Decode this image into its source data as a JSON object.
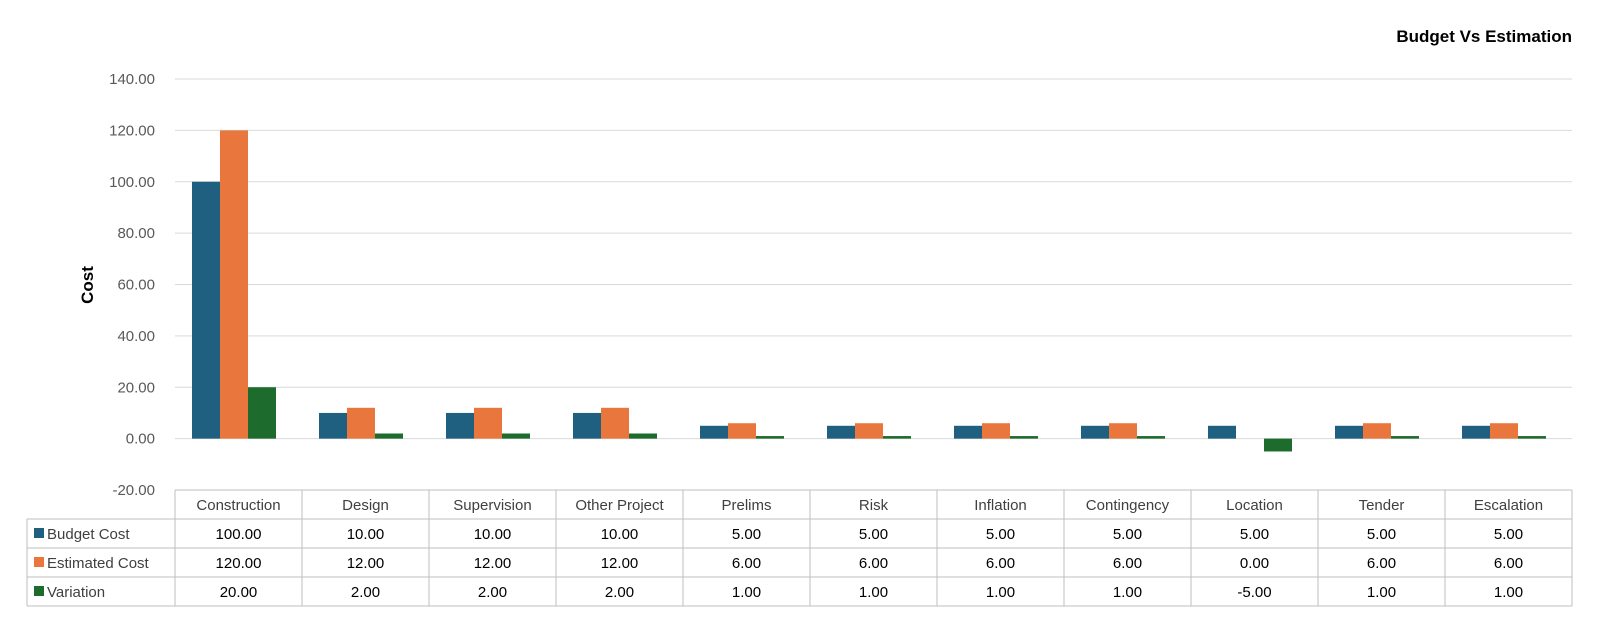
{
  "chart_data": {
    "type": "bar",
    "title": "Budget Vs Estimation",
    "xlabel": "",
    "ylabel": "Cost",
    "ylim": [
      -20,
      140
    ],
    "ytick_step": 20,
    "ytick_format_decimals": 2,
    "grid": true,
    "legend": "data-table",
    "categories": [
      "Construction",
      "Design",
      "Supervision",
      "Other Project",
      "Prelims",
      "Risk",
      "Inflation",
      "Contingency",
      "Location",
      "Tender",
      "Escalation"
    ],
    "series": [
      {
        "name": "Budget Cost",
        "color": "#1F5F7F",
        "values": [
          100,
          10,
          10,
          10,
          5,
          5,
          5,
          5,
          5,
          5,
          5
        ]
      },
      {
        "name": "Estimated Cost",
        "color": "#E8763D",
        "values": [
          120,
          12,
          12,
          12,
          6,
          6,
          6,
          6,
          0,
          6,
          6
        ]
      },
      {
        "name": "Variation",
        "color": "#1E6B2E",
        "values": [
          20,
          2,
          2,
          2,
          1,
          1,
          1,
          1,
          -5,
          1,
          1
        ]
      }
    ]
  },
  "colors": {
    "grid": "#D9D9D9",
    "table_border": "#BFBFBF"
  }
}
